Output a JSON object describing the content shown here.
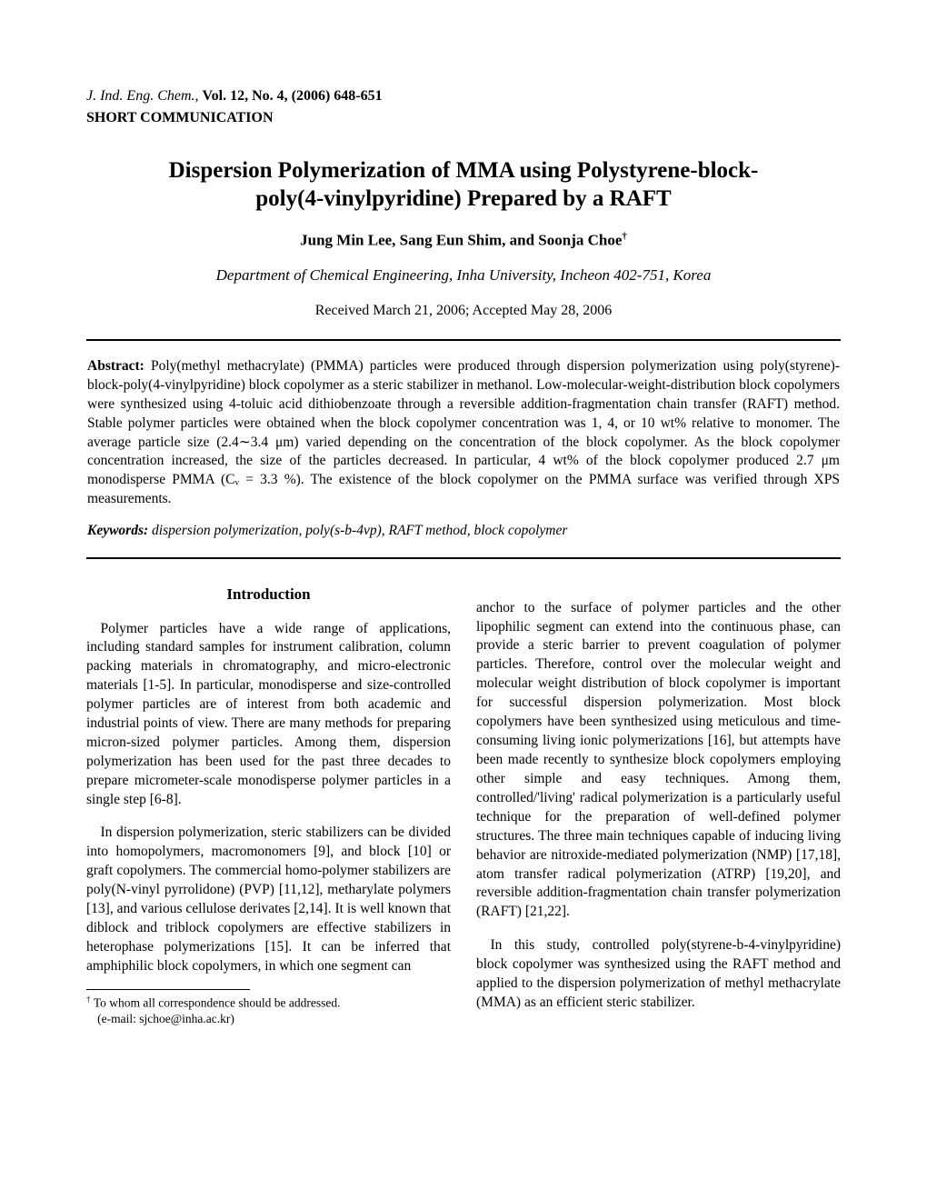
{
  "journal": {
    "name": "J. Ind. Eng. Chem.,",
    "volume": "Vol. 12",
    "issue_year": ", No. 4, (2006) 648-651",
    "category": "SHORT COMMUNICATION"
  },
  "title": "Dispersion Polymerization of MMA using Polystyrene-block-poly(4-vinylpyridine) Prepared by a RAFT",
  "authors": "Jung Min Lee, Sang Eun Shim, and Soonja Choe",
  "corresp_symbol": "†",
  "affiliation": "Department of Chemical Engineering, Inha University, Incheon 402-751, Korea",
  "dates": "Received March 21, 2006; Accepted May 28, 2006",
  "abstract": {
    "label": "Abstract:",
    "text": " Poly(methyl methacrylate) (PMMA) particles were produced through dispersion polymerization using poly(styrene)-block-poly(4-vinylpyridine) block copolymer as a steric stabilizer in methanol. Low-molecular-weight-distribution block copolymers were synthesized using 4-toluic acid dithiobenzoate through a reversible addition-fragmentation chain transfer (RAFT) method. Stable polymer particles were obtained when the block copolymer concentration was 1, 4, or 10 wt% relative to monomer. The average particle size (2.4∼3.4 μm) varied depending on the concentration of the block copolymer. As the block copolymer concentration increased, the size of the particles decreased. In particular, 4 wt% of the block copolymer produced 2.7 μm monodisperse PMMA (Cᵥ = 3.3 %). The existence of the block copolymer on the PMMA surface was verified through XPS measurements."
  },
  "keywords": {
    "label": "Keywords:",
    "text": " dispersion polymerization, poly(s-b-4vp), RAFT method, block copolymer"
  },
  "intro_heading": "Introduction",
  "body": {
    "p1": "Polymer particles have a wide range of applications, including standard samples for instrument calibration, column packing materials in chromatography, and micro-electronic materials [1-5]. In particular, monodisperse and size-controlled polymer particles are of interest from both academic and industrial points of view. There are many methods for preparing micron-sized polymer particles. Among them, dispersion polymerization has been used for the past three decades to prepare micrometer-scale monodisperse polymer particles in a single step [6-8].",
    "p2": "In dispersion polymerization, steric stabilizers can be divided into homopolymers, macromonomers [9], and block [10] or graft copolymers. The commercial homo-polymer stabilizers are poly(N-vinyl pyrrolidone)   (PVP) [11,12], metharylate polymers [13], and various cellulose derivates [2,14]. It is well known that diblock and triblock copolymers are effective stabilizers in heterophase polymerizations [15]. It can be inferred that amphiphilic block copolymers, in which one segment can",
    "p3": "anchor to the surface of polymer particles and the other lipophilic segment can extend into the continuous phase, can provide a steric barrier to prevent coagulation of polymer particles. Therefore, control over the molecular weight and molecular weight distribution of block copolymer is important for successful dispersion polymerization. Most block copolymers have been synthesized using meticulous and time-consuming living ionic polymerizations [16], but attempts have been made recently to synthesize block copolymers employing other simple and easy techniques. Among them, controlled/'living' radical polymerization is a particularly useful technique for the preparation of well-defined polymer structures. The three main techniques capable of inducing living behavior are nitroxide-mediated polymerization (NMP) [17,18], atom transfer radical polymerization (ATRP) [19,20], and reversible addition-fragmentation chain transfer polymerization (RAFT) [21,22].",
    "p4": "In this study, controlled poly(styrene-b-4-vinylpyridine) block copolymer was synthesized using the RAFT method and applied to the dispersion polymerization of methyl methacrylate (MMA) as an efficient steric stabilizer."
  },
  "footnote": {
    "symbol": "†",
    "line1": "To whom all correspondence should be addressed.",
    "line2": "(e-mail: sjchoe@inha.ac.kr)"
  }
}
